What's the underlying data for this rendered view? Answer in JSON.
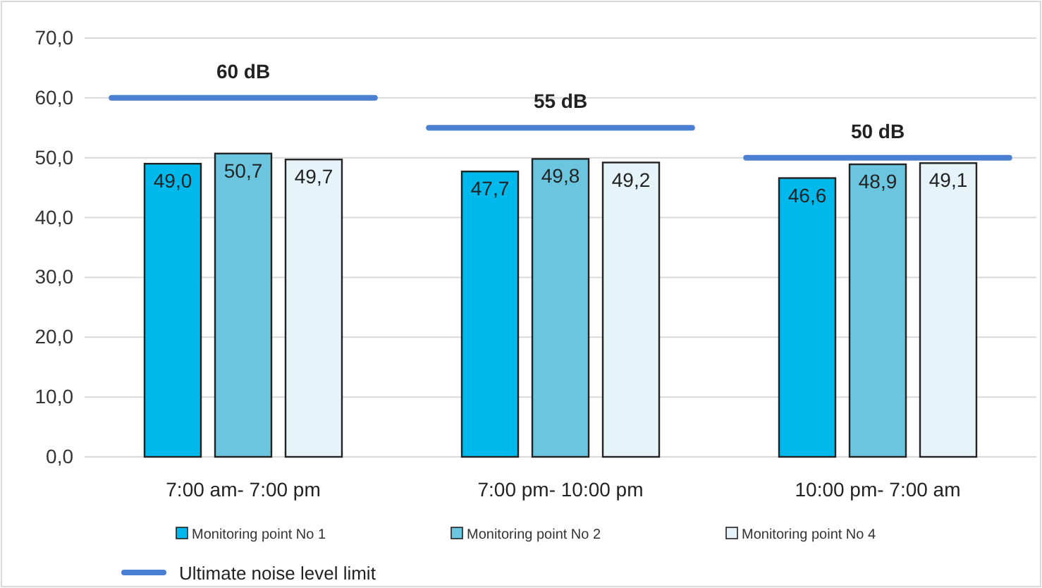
{
  "chart_data": {
    "type": "bar",
    "categories": [
      "7:00 am- 7:00 pm",
      "7:00 pm- 10:00 pm",
      "10:00 pm- 7:00 am"
    ],
    "series": [
      {
        "name": "Monitoring point No 1",
        "color": "#00b9ec",
        "values": [
          49.0,
          47.7,
          46.6
        ]
      },
      {
        "name": "Monitoring point No 2",
        "color": "#6bc5de",
        "values": [
          50.7,
          49.8,
          48.9
        ]
      },
      {
        "name": "Monitoring point No 4",
        "color": "#e6f4f9",
        "values": [
          49.7,
          49.2,
          49.1
        ]
      }
    ],
    "ref_lines": [
      {
        "axis": "y",
        "value": 60,
        "label": "60 dB",
        "color": "#4a7fd4"
      },
      {
        "axis": "y",
        "value": 55,
        "label": "55 dB",
        "color": "#4a7fd4"
      },
      {
        "axis": "y",
        "value": 50,
        "label": "50 dB",
        "color": "#4a7fd4"
      }
    ],
    "annotations": [
      "Ultimate noise level limit"
    ],
    "ylim": [
      0,
      70
    ],
    "yticks": [
      {
        "value": 0,
        "label": "0,0"
      },
      {
        "value": 10,
        "label": "10,0"
      },
      {
        "value": 20,
        "label": "20,0"
      },
      {
        "value": 30,
        "label": "30,0"
      },
      {
        "value": 40,
        "label": "40,0"
      },
      {
        "value": 50,
        "label": "50,0"
      },
      {
        "value": 60,
        "label": "60,0"
      },
      {
        "value": 70,
        "label": "70,0"
      }
    ],
    "grid": "y",
    "legend": "bottom",
    "value_labels": [
      [
        "49,0",
        "47,7",
        "46,6"
      ],
      [
        "50,7",
        "49,8",
        "48,9"
      ],
      [
        "49,7",
        "49,2",
        "49,1"
      ]
    ]
  }
}
